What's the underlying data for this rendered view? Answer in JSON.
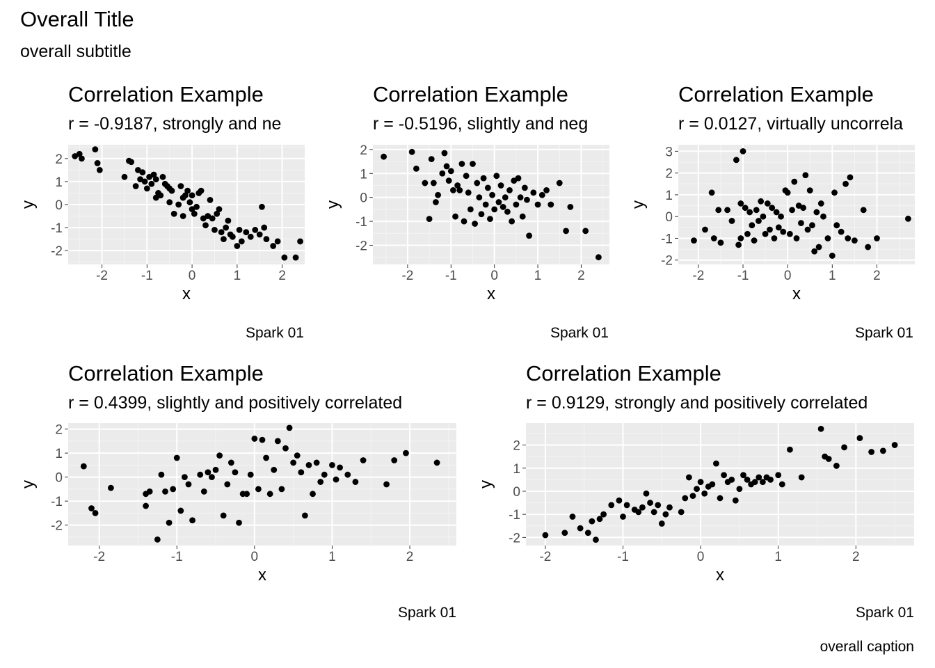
{
  "overall": {
    "title": "Overall Title",
    "subtitle": "overall subtitle",
    "caption": "overall caption"
  },
  "colors": {
    "panel_background": "#ebebeb",
    "grid_major": "#ffffff",
    "grid_minor": "#f4f4f4",
    "points": "#000000",
    "tick_text": "#4d4d4d"
  },
  "chart_data": [
    {
      "type": "scatter",
      "title": "Correlation Example",
      "subtitle": "r = -0.9187, strongly and ne",
      "xlabel": "x",
      "ylabel": "y",
      "caption": "Spark 01",
      "xlim": [
        -2.75,
        2.5
      ],
      "ylim": [
        -2.6,
        2.6
      ],
      "xticks": [
        -2,
        -1,
        0,
        1,
        2
      ],
      "yticks": [
        -2,
        -1,
        0,
        1,
        2
      ],
      "x": [
        -2.6,
        -2.5,
        -2.45,
        -2.15,
        -2.1,
        -2.05,
        -1.5,
        -1.4,
        -1.35,
        -1.25,
        -1.2,
        -1.15,
        -1.1,
        -1.05,
        -1.0,
        -0.95,
        -0.9,
        -0.85,
        -0.8,
        -0.8,
        -0.75,
        -0.7,
        -0.65,
        -0.6,
        -0.55,
        -0.5,
        -0.5,
        -0.45,
        -0.4,
        -0.3,
        -0.25,
        -0.2,
        -0.2,
        -0.15,
        -0.1,
        -0.05,
        0.0,
        0.0,
        0.05,
        0.1,
        0.15,
        0.2,
        0.25,
        0.3,
        0.35,
        0.4,
        0.45,
        0.5,
        0.55,
        0.6,
        0.65,
        0.7,
        0.75,
        0.8,
        0.85,
        0.9,
        1.0,
        1.05,
        1.1,
        1.2,
        1.3,
        1.4,
        1.5,
        1.55,
        1.6,
        1.65,
        1.8,
        1.9,
        2.05,
        2.3,
        2.4
      ],
      "y": [
        2.1,
        2.2,
        2.0,
        2.4,
        1.8,
        1.5,
        1.2,
        1.9,
        1.85,
        0.8,
        1.5,
        1.1,
        1.4,
        1.0,
        0.7,
        1.2,
        0.9,
        1.3,
        0.3,
        1.1,
        0.5,
        0.4,
        1.2,
        0.9,
        0.8,
        0.7,
        0.1,
        0.6,
        -0.4,
        0.0,
        0.8,
        0.3,
        -0.5,
        0.4,
        0.6,
        0.1,
        -0.2,
        0.4,
        -0.4,
        -0.1,
        0.5,
        0.6,
        -0.6,
        -0.9,
        -0.5,
        0.2,
        -0.6,
        -1.1,
        -0.4,
        -0.2,
        -1.2,
        -1.5,
        -1.0,
        -0.7,
        -1.3,
        -1.4,
        -1.8,
        -1.1,
        -1.6,
        -1.2,
        -1.4,
        -1.1,
        -1.3,
        -0.1,
        -1.0,
        -1.5,
        -1.8,
        -1.6,
        -2.3,
        -2.3,
        -1.6
      ]
    },
    {
      "type": "scatter",
      "title": "Correlation Example",
      "subtitle": "r = -0.5196, slightly and neg",
      "xlabel": "x",
      "ylabel": "y",
      "caption": "Spark 01",
      "xlim": [
        -2.8,
        2.65
      ],
      "ylim": [
        -2.8,
        2.2
      ],
      "xticks": [
        -2,
        -1,
        0,
        1,
        2
      ],
      "yticks": [
        -2,
        -1,
        0,
        1,
        2
      ],
      "x": [
        -2.55,
        -1.9,
        -1.8,
        -1.6,
        -1.5,
        -1.45,
        -1.4,
        -1.35,
        -1.3,
        -1.2,
        -1.15,
        -1.1,
        -1.05,
        -1.0,
        -0.95,
        -0.9,
        -0.85,
        -0.8,
        -0.75,
        -0.7,
        -0.65,
        -0.6,
        -0.55,
        -0.5,
        -0.45,
        -0.4,
        -0.35,
        -0.3,
        -0.25,
        -0.2,
        -0.15,
        -0.1,
        -0.05,
        0.0,
        0.05,
        0.1,
        0.15,
        0.2,
        0.25,
        0.3,
        0.35,
        0.4,
        0.45,
        0.5,
        0.55,
        0.6,
        0.65,
        0.7,
        0.75,
        0.8,
        0.9,
        1.0,
        1.1,
        1.2,
        1.3,
        1.5,
        1.65,
        1.75,
        2.1,
        2.4
      ],
      "y": [
        1.7,
        1.9,
        1.2,
        0.6,
        -0.9,
        1.6,
        0.6,
        -0.2,
        0.1,
        1.0,
        1.85,
        1.3,
        0.7,
        1.1,
        0.3,
        -0.8,
        0.5,
        0.3,
        1.4,
        -1.0,
        0.9,
        0.2,
        -0.5,
        1.4,
        -1.1,
        0.6,
        0.0,
        -0.7,
        0.8,
        -0.3,
        0.4,
        -0.9,
        0.1,
        -0.5,
        0.9,
        -0.2,
        0.5,
        -0.4,
        0.0,
        -0.6,
        0.3,
        -1.0,
        0.7,
        -0.3,
        0.8,
        0.0,
        -0.8,
        0.4,
        -0.1,
        -1.6,
        0.2,
        -0.3,
        0.1,
        0.3,
        -0.3,
        0.6,
        -1.4,
        -0.4,
        -1.4,
        -2.5
      ]
    },
    {
      "type": "scatter",
      "title": "Correlation Example",
      "subtitle": "r = 0.0127, virtually uncorrela",
      "xlabel": "x",
      "ylabel": "y",
      "caption": "Spark 01",
      "xlim": [
        -2.45,
        2.85
      ],
      "ylim": [
        -2.2,
        3.3
      ],
      "xticks": [
        -2,
        -1,
        0,
        1,
        2
      ],
      "yticks": [
        -2,
        -1,
        0,
        1,
        2,
        3
      ],
      "x": [
        -2.1,
        -1.85,
        -1.7,
        -1.65,
        -1.55,
        -1.5,
        -1.35,
        -1.25,
        -1.15,
        -1.1,
        -1.05,
        -1.05,
        -1.0,
        -0.95,
        -0.9,
        -0.85,
        -0.8,
        -0.75,
        -0.7,
        -0.65,
        -0.6,
        -0.55,
        -0.5,
        -0.45,
        -0.4,
        -0.35,
        -0.3,
        -0.25,
        -0.2,
        -0.15,
        -0.1,
        -0.05,
        0.0,
        0.05,
        0.1,
        0.15,
        0.2,
        0.25,
        0.3,
        0.35,
        0.4,
        0.45,
        0.5,
        0.55,
        0.6,
        0.65,
        0.7,
        0.75,
        0.8,
        0.9,
        1.0,
        1.05,
        1.1,
        1.2,
        1.3,
        1.35,
        1.4,
        1.5,
        1.7,
        1.8,
        2.0,
        2.7
      ],
      "y": [
        -1.1,
        -0.6,
        1.1,
        -1.0,
        0.3,
        -1.2,
        0.3,
        -0.2,
        2.6,
        -1.3,
        -1.0,
        0.6,
        3.0,
        0.4,
        -0.8,
        0.2,
        -0.4,
        -1.1,
        0.3,
        -0.2,
        0.7,
        0.0,
        -0.8,
        0.6,
        -0.6,
        0.4,
        -1.0,
        0.2,
        -0.5,
        0.0,
        -0.7,
        1.2,
        1.1,
        -0.8,
        0.3,
        1.6,
        -1.0,
        0.5,
        -0.3,
        0.4,
        1.9,
        -0.6,
        1.2,
        -0.4,
        -1.6,
        0.2,
        -1.4,
        0.6,
        0.0,
        -1.0,
        -1.8,
        1.1,
        -0.4,
        -0.7,
        1.5,
        -1.0,
        1.8,
        -1.1,
        0.3,
        -1.4,
        -1.0,
        -0.1
      ]
    },
    {
      "type": "scatter",
      "title": "Correlation Example",
      "subtitle": "r = 0.4399, slightly and positively correlated",
      "xlabel": "x",
      "ylabel": "y",
      "caption": "Spark 01",
      "xlim": [
        -2.4,
        2.6
      ],
      "ylim": [
        -2.85,
        2.25
      ],
      "xticks": [
        -2,
        -1,
        0,
        1,
        2
      ],
      "yticks": [
        -2,
        -1,
        0,
        1,
        2
      ],
      "x": [
        -2.2,
        -2.1,
        -2.05,
        -1.85,
        -1.4,
        -1.4,
        -1.35,
        -1.25,
        -1.2,
        -1.15,
        -1.1,
        -1.05,
        -1.0,
        -0.95,
        -0.9,
        -0.85,
        -0.8,
        -0.7,
        -0.65,
        -0.6,
        -0.55,
        -0.5,
        -0.45,
        -0.4,
        -0.35,
        -0.3,
        -0.25,
        -0.2,
        -0.15,
        -0.1,
        -0.05,
        0.0,
        0.05,
        0.1,
        0.15,
        0.2,
        0.25,
        0.3,
        0.35,
        0.4,
        0.45,
        0.5,
        0.55,
        0.6,
        0.65,
        0.7,
        0.75,
        0.8,
        0.85,
        0.9,
        1.0,
        1.05,
        1.1,
        1.2,
        1.3,
        1.4,
        1.7,
        1.8,
        1.95,
        2.35
      ],
      "y": [
        0.45,
        -1.3,
        -1.5,
        -0.45,
        -0.7,
        -1.2,
        -0.6,
        -2.6,
        0.1,
        -0.6,
        -1.9,
        -0.5,
        0.8,
        -1.4,
        0.0,
        -0.3,
        -1.8,
        0.1,
        -0.6,
        0.2,
        0.0,
        0.3,
        0.9,
        -1.6,
        -0.3,
        0.6,
        0.2,
        -1.9,
        -0.7,
        -0.7,
        0.1,
        1.6,
        -0.5,
        1.55,
        0.8,
        -0.7,
        0.3,
        1.5,
        -0.5,
        1.2,
        2.05,
        0.6,
        0.9,
        0.2,
        -1.6,
        0.5,
        -0.7,
        0.6,
        -0.2,
        0.1,
        0.5,
        -0.1,
        0.4,
        0.1,
        -0.2,
        0.7,
        -0.3,
        0.7,
        1.0,
        0.6
      ]
    },
    {
      "type": "scatter",
      "title": "Correlation Example",
      "subtitle": "r = 0.9129, strongly and positively correlated",
      "xlabel": "x",
      "ylabel": "y",
      "caption": "Spark 01",
      "xlim": [
        -2.25,
        2.75
      ],
      "ylim": [
        -2.35,
        2.95
      ],
      "xticks": [
        -2,
        -1,
        0,
        1,
        2
      ],
      "yticks": [
        -2,
        -1,
        0,
        1,
        2
      ],
      "x": [
        -2.0,
        -1.75,
        -1.65,
        -1.55,
        -1.45,
        -1.4,
        -1.35,
        -1.3,
        -1.25,
        -1.15,
        -1.05,
        -1.0,
        -0.95,
        -0.85,
        -0.8,
        -0.75,
        -0.7,
        -0.65,
        -0.6,
        -0.55,
        -0.5,
        -0.45,
        -0.4,
        -0.25,
        -0.2,
        -0.15,
        -0.1,
        -0.05,
        0.0,
        0.05,
        0.1,
        0.15,
        0.2,
        0.25,
        0.3,
        0.35,
        0.4,
        0.45,
        0.5,
        0.55,
        0.6,
        0.65,
        0.7,
        0.75,
        0.8,
        0.85,
        0.9,
        1.0,
        1.05,
        1.15,
        1.3,
        1.55,
        1.6,
        1.65,
        1.75,
        1.85,
        2.05,
        2.2,
        2.35,
        2.5
      ],
      "y": [
        -1.9,
        -1.8,
        -1.1,
        -1.6,
        -1.8,
        -1.3,
        -2.1,
        -1.2,
        -1.0,
        -0.6,
        -0.4,
        -1.1,
        -0.6,
        -0.8,
        -0.9,
        -0.7,
        -0.1,
        -0.5,
        -0.9,
        -0.6,
        -1.4,
        -1.0,
        -0.7,
        -0.9,
        -0.3,
        0.6,
        -0.2,
        0.1,
        0.4,
        -0.1,
        0.2,
        0.3,
        1.2,
        -0.3,
        0.7,
        0.4,
        0.5,
        -0.4,
        0.1,
        0.7,
        0.5,
        0.3,
        0.4,
        0.6,
        0.4,
        0.6,
        0.5,
        0.7,
        0.3,
        1.8,
        0.6,
        2.7,
        1.5,
        1.4,
        1.1,
        1.9,
        2.3,
        1.7,
        1.75,
        2.0
      ]
    }
  ]
}
